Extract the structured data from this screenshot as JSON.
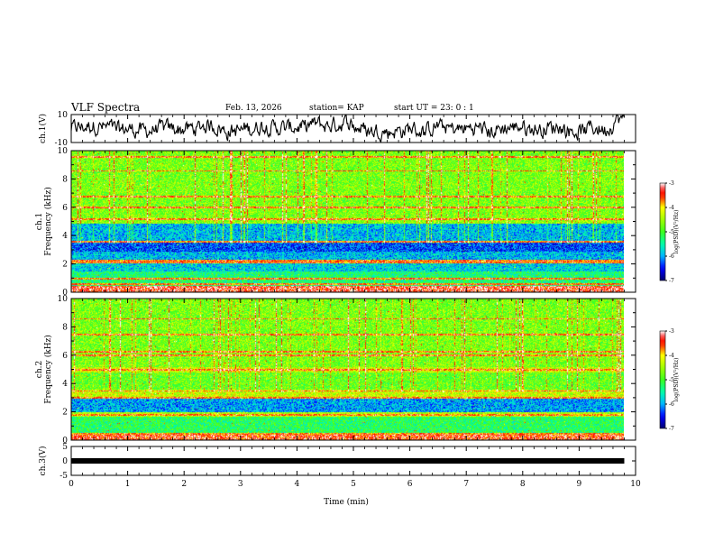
{
  "header": {
    "title": "VLF Spectra",
    "date": "Feb. 13, 2026",
    "station": "station= KAP",
    "start_ut": "start  UT  =   23: 0  : 1"
  },
  "colors": {
    "waveform": "#000000",
    "axis": "#000000",
    "background": "#ffffff",
    "colormap": [
      "#000080",
      "#0000ff",
      "#00c0ff",
      "#00ff80",
      "#40ff20",
      "#ffff00",
      "#ff4000",
      "#ff0000",
      "#ffc0c0",
      "#ffffff"
    ]
  },
  "chart_data": [
    {
      "type": "line",
      "name": "ch1-waveform",
      "ylabel": "ch.1(V)",
      "ylim": [
        -10,
        10
      ],
      "yticks": [
        "10",
        "-10"
      ],
      "x_range_min": [
        0,
        9.8
      ],
      "description_values": "noisy waveform oscillating roughly between -8 and +9 V, mean near 0"
    },
    {
      "type": "heatmap",
      "name": "ch1-spectrogram",
      "ylabel": "ch.1\nFrequency (kHz)",
      "ylim": [
        0,
        10
      ],
      "yticks": [
        "0",
        "2",
        "4",
        "6",
        "8",
        "10"
      ],
      "x_range_min": [
        0,
        9.8
      ],
      "colorbar": {
        "label": "log(PSD)(V²/Hz)",
        "range": [
          -7,
          -3
        ],
        "ticks": [
          "-3",
          "-4",
          "-5",
          "-6",
          "-7"
        ]
      },
      "bands": [
        {
          "fmin": 0.0,
          "fmax": 0.5,
          "level": -3.3
        },
        {
          "fmin": 0.5,
          "fmax": 1.5,
          "level": -5.3
        },
        {
          "fmin": 1.5,
          "fmax": 2.1,
          "level": -5.8
        },
        {
          "fmin": 2.1,
          "fmax": 2.3,
          "level": -3.6
        },
        {
          "fmin": 2.3,
          "fmax": 2.9,
          "level": -5.9
        },
        {
          "fmin": 2.9,
          "fmax": 3.6,
          "level": -6.3
        },
        {
          "fmin": 3.6,
          "fmax": 4.9,
          "level": -5.9
        },
        {
          "fmin": 4.9,
          "fmax": 5.3,
          "level": -4.6
        },
        {
          "fmin": 5.3,
          "fmax": 10.0,
          "level": -4.7
        }
      ],
      "lines_khz": [
        0.2,
        0.4,
        0.6,
        1.0,
        2.2,
        3.6,
        5.2,
        6.0,
        6.8,
        8.6,
        9.6
      ]
    },
    {
      "type": "heatmap",
      "name": "ch2-spectrogram",
      "ylabel": "ch.2\nFrequency (kHz)",
      "ylim": [
        0,
        10
      ],
      "yticks": [
        "0",
        "2",
        "4",
        "6",
        "8",
        "10"
      ],
      "x_range_min": [
        0,
        9.8
      ],
      "colorbar": {
        "label": "log(PSD)(V²/Hz)",
        "range": [
          -7,
          -3
        ],
        "ticks": [
          "-3",
          "-4",
          "-5",
          "-6",
          "-7"
        ]
      },
      "bands": [
        {
          "fmin": 0.0,
          "fmax": 0.4,
          "level": -3.4
        },
        {
          "fmin": 0.4,
          "fmax": 1.7,
          "level": -5.2
        },
        {
          "fmin": 1.7,
          "fmax": 2.0,
          "level": -4.4
        },
        {
          "fmin": 2.0,
          "fmax": 3.0,
          "level": -6.0
        },
        {
          "fmin": 3.0,
          "fmax": 3.6,
          "level": -4.3
        },
        {
          "fmin": 3.6,
          "fmax": 4.8,
          "level": -4.8
        },
        {
          "fmin": 4.8,
          "fmax": 5.2,
          "level": -4.3
        },
        {
          "fmin": 5.2,
          "fmax": 10.0,
          "level": -4.7
        }
      ],
      "lines_khz": [
        0.2,
        0.5,
        1.8,
        3.0,
        3.5,
        5.0,
        6.0,
        6.3,
        7.5,
        8.6
      ]
    },
    {
      "type": "line",
      "name": "ch3-waveform",
      "ylabel": "ch.3(V)",
      "ylim": [
        -5,
        5
      ],
      "yticks": [
        "5",
        "0",
        "-5"
      ],
      "x_range_min": [
        0,
        9.8
      ],
      "constant_value": 0
    }
  ],
  "xaxis": {
    "label": "Time  (min)",
    "range": [
      0,
      10
    ],
    "ticks": [
      "0",
      "1",
      "2",
      "3",
      "4",
      "5",
      "6",
      "7",
      "8",
      "9",
      "10"
    ]
  }
}
